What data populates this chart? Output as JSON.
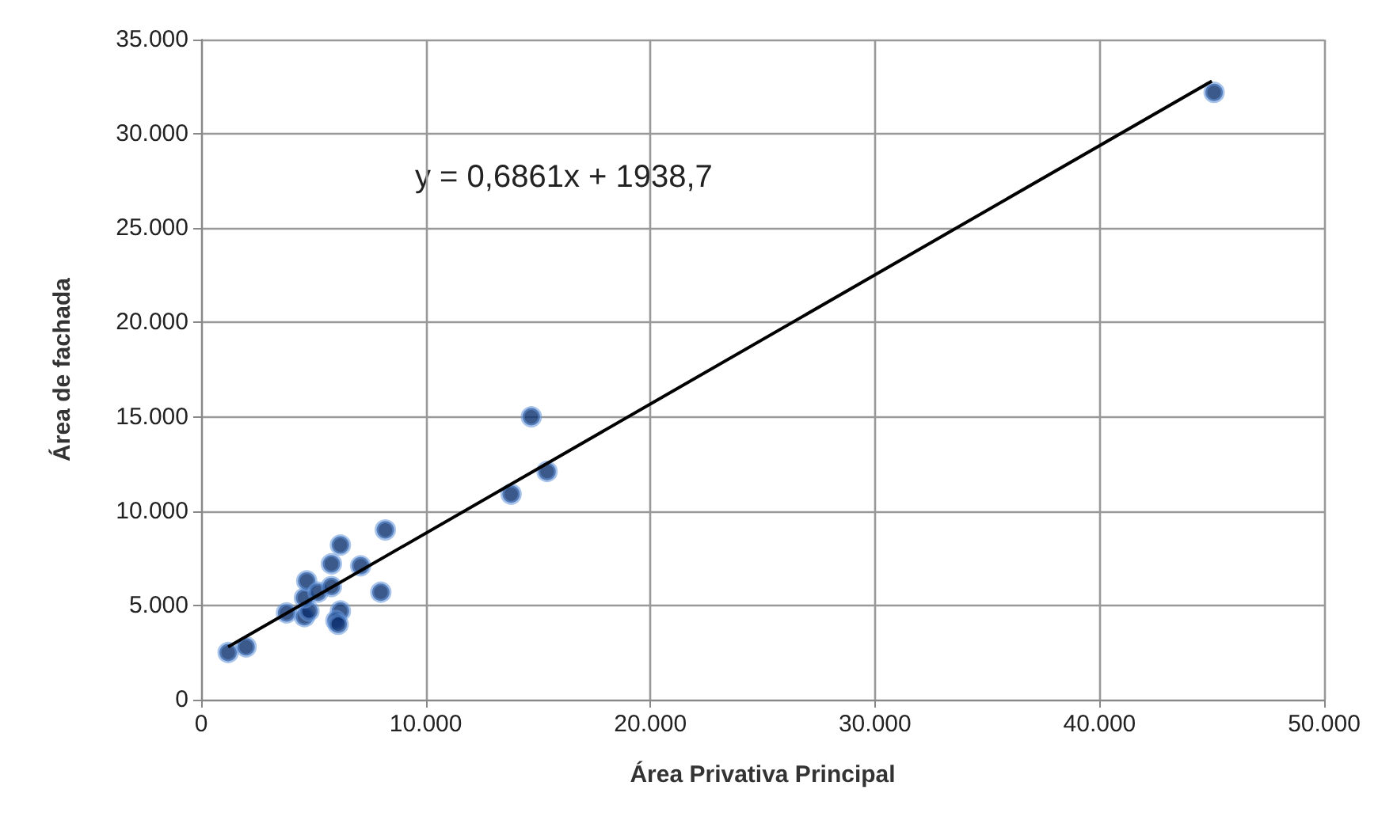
{
  "chart_data": {
    "type": "scatter",
    "xlabel": "Área Privativa Principal",
    "ylabel": "Área de fachada",
    "annotations": [
      "y = 0,6861x + 1938,7"
    ],
    "xlim": [
      0,
      50000
    ],
    "ylim": [
      0,
      35000
    ],
    "xticks": [
      {
        "value": 0,
        "label": "0"
      },
      {
        "value": 10000,
        "label": "10.000"
      },
      {
        "value": 20000,
        "label": "20.000"
      },
      {
        "value": 30000,
        "label": "30.000"
      },
      {
        "value": 40000,
        "label": "40.000"
      },
      {
        "value": 50000,
        "label": "50.000"
      }
    ],
    "yticks": [
      {
        "value": 0,
        "label": "0"
      },
      {
        "value": 5000,
        "label": "5.000"
      },
      {
        "value": 10000,
        "label": "10.000"
      },
      {
        "value": 15000,
        "label": "15.000"
      },
      {
        "value": 20000,
        "label": "20.000"
      },
      {
        "value": 25000,
        "label": "25.000"
      },
      {
        "value": 30000,
        "label": "30.000"
      },
      {
        "value": 35000,
        "label": "35.000"
      }
    ],
    "grid": true,
    "marker": "circle",
    "series": [
      {
        "color": "#0b2f6e",
        "x": [
          1200,
          2000,
          3800,
          4600,
          4800,
          4600,
          4700,
          5200,
          5800,
          5800,
          6200,
          6200,
          6000,
          6100,
          7100,
          8000,
          8200,
          13800,
          15400,
          14700,
          45100
        ],
        "values": [
          2500,
          2800,
          4600,
          4400,
          4700,
          5400,
          6300,
          5700,
          7200,
          6000,
          8200,
          4700,
          4200,
          4000,
          7100,
          5700,
          9000,
          10900,
          12100,
          15000,
          32200
        ]
      },
      {
        "type": "line",
        "color": "#000000",
        "marker": "none",
        "x": [
          1200,
          45000
        ],
        "values": [
          2800,
          32800
        ]
      }
    ]
  }
}
